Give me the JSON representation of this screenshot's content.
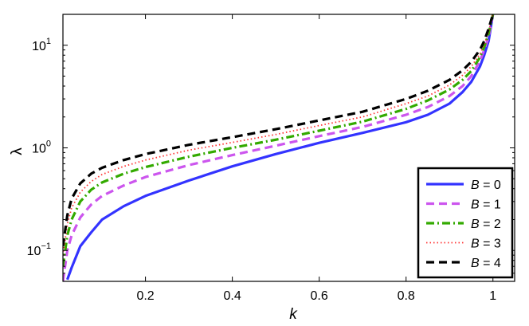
{
  "chart_data": {
    "type": "line",
    "xlabel": "k",
    "ylabel": "λ",
    "y_scale": "log",
    "xlim": [
      0.01,
      1.05
    ],
    "ylim": [
      0.05,
      20
    ],
    "x_ticks": [
      {
        "value": 0.2,
        "label": "0.2"
      },
      {
        "value": 0.4,
        "label": "0.4"
      },
      {
        "value": 0.6,
        "label": "0.6"
      },
      {
        "value": 0.8,
        "label": "0.8"
      },
      {
        "value": 1.0,
        "label": "1"
      }
    ],
    "y_ticks": [
      {
        "value": 0.1,
        "base": "10",
        "exponent": "−1"
      },
      {
        "value": 1,
        "base": "10",
        "exponent": "0"
      },
      {
        "value": 10,
        "base": "10",
        "exponent": "1"
      }
    ],
    "legend_position": "bottom-right",
    "series": [
      {
        "name": "B = 0",
        "legend_var": "B",
        "legend_value": "= 0",
        "color": "#3333ff",
        "style": "solid",
        "x": [
          0.02,
          0.03,
          0.05,
          0.075,
          0.1,
          0.15,
          0.2,
          0.3,
          0.4,
          0.5,
          0.6,
          0.7,
          0.8,
          0.85,
          0.9,
          0.93,
          0.95,
          0.97,
          0.98,
          0.99,
          1.0
        ],
        "y": [
          0.052,
          0.068,
          0.11,
          0.15,
          0.2,
          0.27,
          0.34,
          0.48,
          0.66,
          0.87,
          1.12,
          1.4,
          1.78,
          2.1,
          2.7,
          3.5,
          4.4,
          6.2,
          8.0,
          11.0,
          20.0
        ]
      },
      {
        "name": "B = 1",
        "legend_var": "B",
        "legend_value": "= 1",
        "color": "#cc55ee",
        "style": "dashed",
        "x": [
          0.01,
          0.02,
          0.03,
          0.05,
          0.075,
          0.1,
          0.15,
          0.2,
          0.3,
          0.4,
          0.5,
          0.6,
          0.7,
          0.8,
          0.85,
          0.9,
          0.93,
          0.95,
          0.97,
          0.98,
          0.99,
          1.0
        ],
        "y": [
          0.05,
          0.1,
          0.14,
          0.21,
          0.28,
          0.34,
          0.43,
          0.52,
          0.68,
          0.85,
          1.05,
          1.3,
          1.6,
          2.1,
          2.5,
          3.2,
          4.0,
          5.0,
          7.0,
          9.0,
          12.0,
          20.0
        ]
      },
      {
        "name": "B = 2",
        "legend_var": "B",
        "legend_value": "= 2",
        "color": "#33aa00",
        "style": "dashdot",
        "x": [
          0.01,
          0.02,
          0.03,
          0.05,
          0.075,
          0.1,
          0.15,
          0.2,
          0.3,
          0.4,
          0.5,
          0.6,
          0.7,
          0.8,
          0.85,
          0.9,
          0.93,
          0.95,
          0.97,
          0.98,
          0.99,
          1.0
        ],
        "y": [
          0.07,
          0.14,
          0.2,
          0.3,
          0.39,
          0.46,
          0.56,
          0.65,
          0.82,
          1.0,
          1.2,
          1.47,
          1.8,
          2.4,
          2.9,
          3.7,
          4.6,
          5.6,
          7.6,
          9.6,
          13.0,
          20.0
        ]
      },
      {
        "name": "B = 3",
        "legend_var": "B",
        "legend_value": "= 3",
        "color": "#ff3333",
        "style": "dotted",
        "x": [
          0.01,
          0.02,
          0.03,
          0.05,
          0.075,
          0.1,
          0.15,
          0.2,
          0.3,
          0.4,
          0.5,
          0.6,
          0.7,
          0.8,
          0.85,
          0.9,
          0.93,
          0.95,
          0.97,
          0.98,
          0.99,
          1.0
        ],
        "y": [
          0.09,
          0.18,
          0.26,
          0.37,
          0.47,
          0.55,
          0.66,
          0.76,
          0.95,
          1.13,
          1.35,
          1.65,
          2.0,
          2.7,
          3.2,
          4.1,
          5.1,
          6.2,
          8.2,
          10.2,
          13.5,
          20.0
        ]
      },
      {
        "name": "B = 4",
        "legend_var": "B",
        "legend_value": "= 4",
        "color": "#000000",
        "style": "dashed",
        "x": [
          0.01,
          0.02,
          0.03,
          0.05,
          0.075,
          0.1,
          0.15,
          0.2,
          0.3,
          0.4,
          0.5,
          0.6,
          0.7,
          0.8,
          0.85,
          0.9,
          0.93,
          0.95,
          0.97,
          0.98,
          0.99,
          1.0
        ],
        "y": [
          0.11,
          0.22,
          0.32,
          0.45,
          0.56,
          0.64,
          0.76,
          0.87,
          1.07,
          1.27,
          1.52,
          1.85,
          2.25,
          3.0,
          3.6,
          4.6,
          5.7,
          6.9,
          9.0,
          11.0,
          14.5,
          20.0
        ]
      }
    ]
  }
}
